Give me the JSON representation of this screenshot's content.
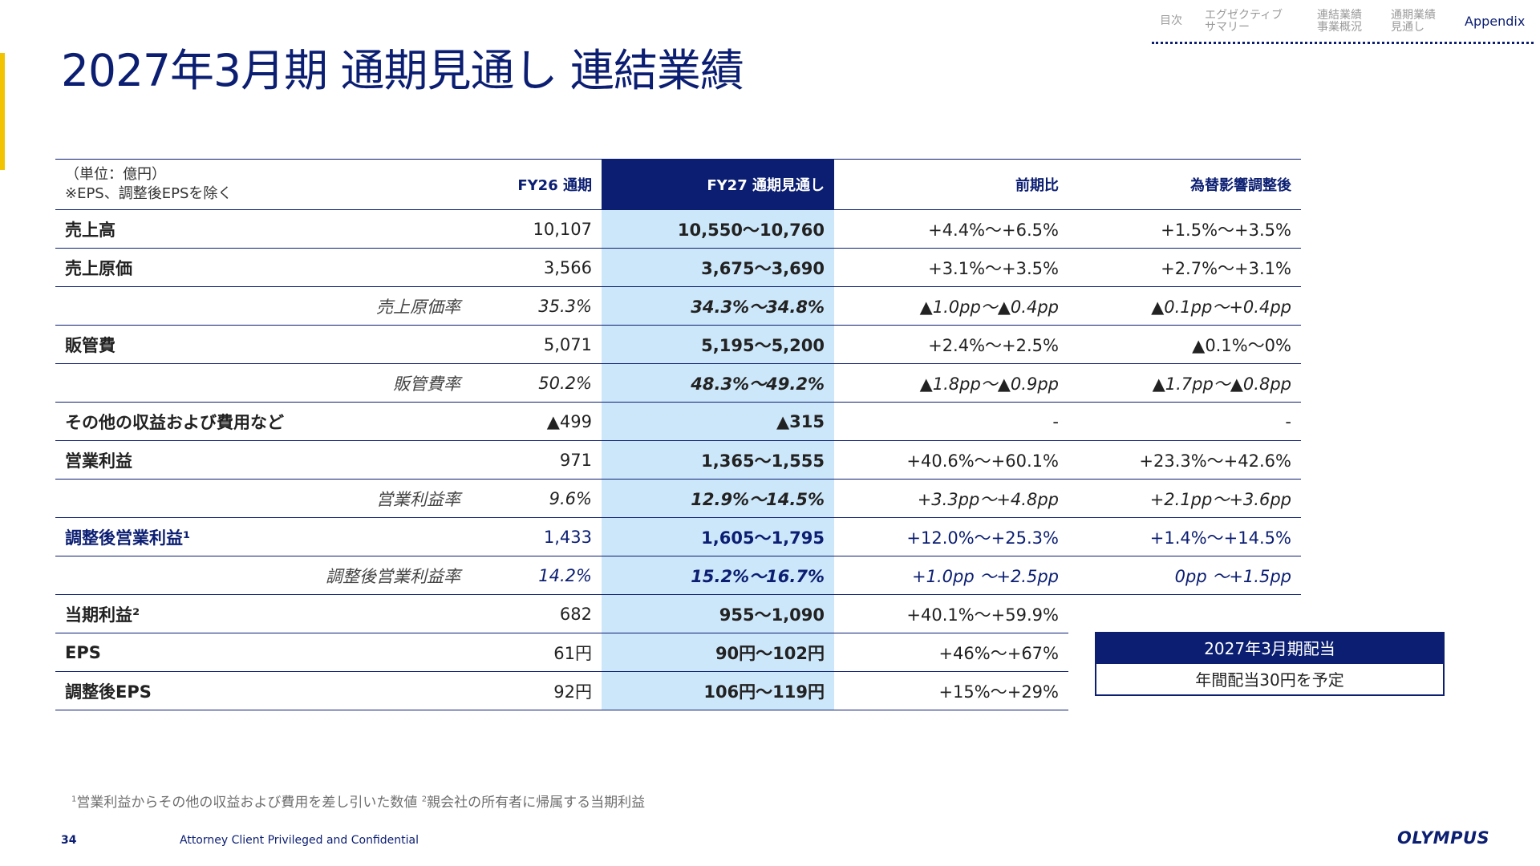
{
  "title": "2027年3月期 通期見通し 連結業績",
  "nav": [
    {
      "label": "目次",
      "active": false
    },
    {
      "label": "エグゼクティブ\nサマリー",
      "active": false
    },
    {
      "label": "連結業績\n事業概況",
      "active": false
    },
    {
      "label": "通期業績\n見通し",
      "active": false
    },
    {
      "label": "Appendix",
      "active": true
    }
  ],
  "table": {
    "unit_note": "（単位：億円）\n※EPS、調整後EPSを除く",
    "columns": [
      "FY26 通期",
      "FY27 通期見通し",
      "前期比",
      "為替影響調整後"
    ],
    "rows": [
      {
        "label": "売上高",
        "fy26": "10,107",
        "fy27": "10,550〜10,760",
        "yoy": "+4.4%〜+6.5%",
        "fx": "+1.5%〜+3.5%"
      },
      {
        "label": "売上原価",
        "fy26": "3,566",
        "fy27": "3,675〜3,690",
        "yoy": "+3.1%〜+3.5%",
        "fx": "+2.7%〜+3.1%"
      },
      {
        "label": "売上原価率",
        "fy26": "35.3%",
        "fy27": "34.3%〜34.8%",
        "yoy": "▲1.0pp〜▲0.4pp",
        "fx": "▲0.1pp〜+0.4pp"
      },
      {
        "label": "販管費",
        "fy26": "5,071",
        "fy27": "5,195〜5,200",
        "yoy": "+2.4%〜+2.5%",
        "fx": "▲0.1%〜0%"
      },
      {
        "label": "販管費率",
        "fy26": "50.2%",
        "fy27": "48.3%〜49.2%",
        "yoy": "▲1.8pp〜▲0.9pp",
        "fx": "▲1.7pp〜▲0.8pp"
      },
      {
        "label": "その他の収益および費用など",
        "fy26": "▲499",
        "fy27": "▲315",
        "yoy": "-",
        "fx": "-"
      },
      {
        "label": "営業利益",
        "fy26": "971",
        "fy27": "1,365〜1,555",
        "yoy": "+40.6%〜+60.1%",
        "fx": "+23.3%〜+42.6%"
      },
      {
        "label": "営業利益率",
        "fy26": "9.6%",
        "fy27": "12.9%〜14.5%",
        "yoy": "+3.3pp〜+4.8pp",
        "fx": "+2.1pp〜+3.6pp"
      },
      {
        "label": "調整後営業利益¹",
        "fy26": "1,433",
        "fy27": "1,605〜1,795",
        "yoy": "+12.0%〜+25.3%",
        "fx": "+1.4%〜+14.5%"
      },
      {
        "label": "調整後営業利益率",
        "fy26": "14.2%",
        "fy27": "15.2%〜16.7%",
        "yoy": "+1.0pp 〜+2.5pp",
        "fx": "0pp 〜+1.5pp"
      },
      {
        "label": "当期利益²",
        "fy26": "682",
        "fy27": "955〜1,090",
        "yoy": "+40.1%〜+59.9%"
      },
      {
        "label": "EPS",
        "fy26": "61円",
        "fy27": "90円〜102円",
        "yoy": "+46%〜+67%"
      },
      {
        "label": "調整後EPS",
        "fy26": "92円",
        "fy27": "106円〜119円",
        "yoy": "+15%〜+29%"
      }
    ]
  },
  "dividend": {
    "title": "2027年3月期配当",
    "value": "年間配当30円を予定"
  },
  "footnotes": {
    "n1_mark": "1",
    "n1_text": "営業利益からその他の収益および費用を差し引いた数値",
    "n2_mark": "2",
    "n2_text": "親会社の所有者に帰属する当期利益"
  },
  "footer": {
    "page_number": "34",
    "confidential": "Attorney Client Privileged and Confidential",
    "logo": "OLYMPUS"
  },
  "colors": {
    "navy": "#0B1E72",
    "highlight": "#CDE7FA",
    "accent": "#F2C300"
  }
}
